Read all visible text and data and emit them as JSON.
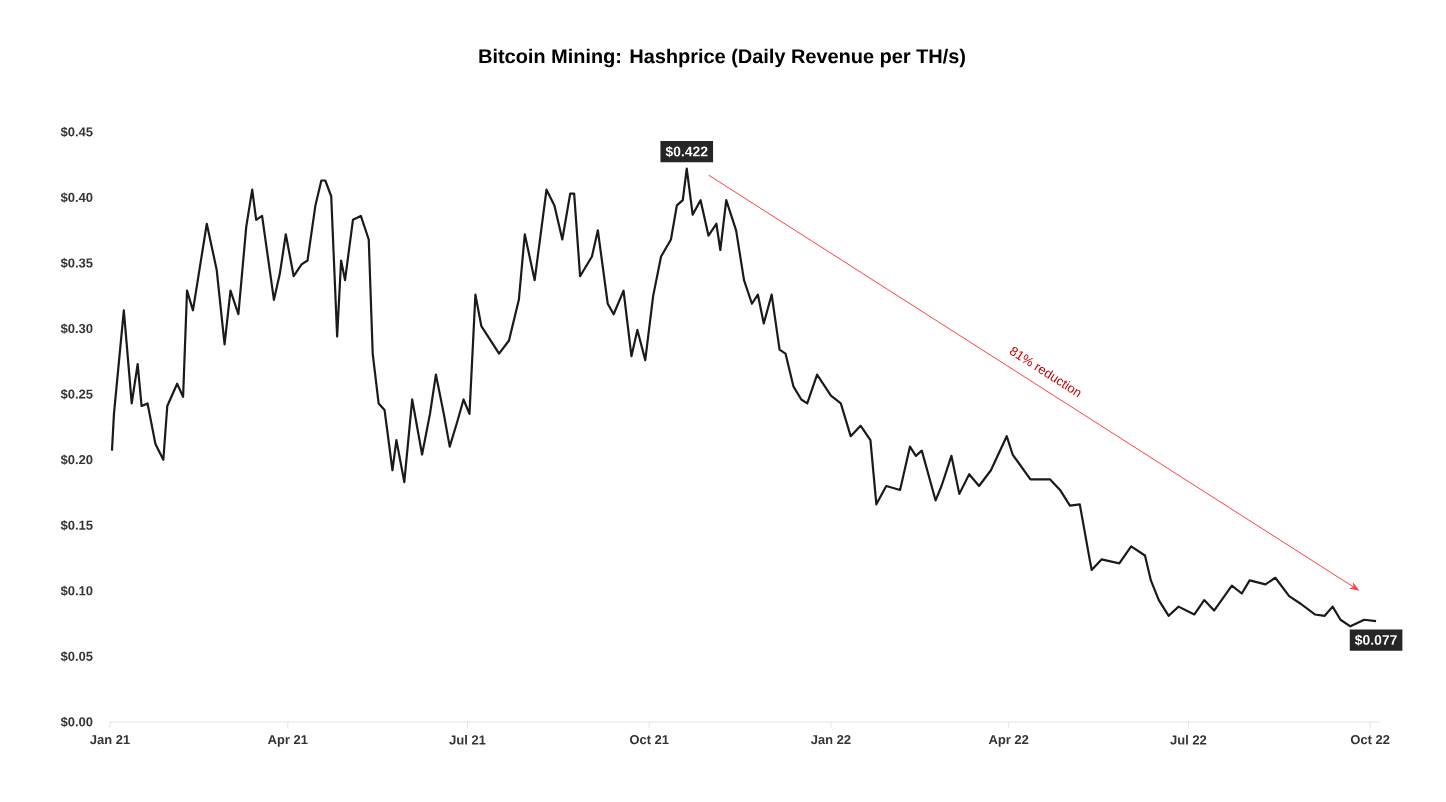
{
  "chart_data": {
    "type": "line",
    "title": "Bitcoin Mining: Hashprice (Daily Revenue per TH/s)",
    "x": [
      "2021-01-02",
      "2021-01-03",
      "2021-01-08",
      "2021-01-12",
      "2021-01-15",
      "2021-01-17",
      "2021-01-20",
      "2021-01-24",
      "2021-01-28",
      "2021-01-30",
      "2021-02-04",
      "2021-02-07",
      "2021-02-09",
      "2021-02-12",
      "2021-02-19",
      "2021-02-24",
      "2021-02-28",
      "2021-03-03",
      "2021-03-07",
      "2021-03-11",
      "2021-03-14",
      "2021-03-16",
      "2021-03-19",
      "2021-03-25",
      "2021-03-28",
      "2021-03-31",
      "2021-04-04",
      "2021-04-08",
      "2021-04-11",
      "2021-04-15",
      "2021-04-18",
      "2021-04-20",
      "2021-04-23",
      "2021-04-26",
      "2021-04-28",
      "2021-04-30",
      "2021-05-04",
      "2021-05-08",
      "2021-05-12",
      "2021-05-14",
      "2021-05-17",
      "2021-05-20",
      "2021-05-24",
      "2021-05-26",
      "2021-05-30",
      "2021-06-03",
      "2021-06-08",
      "2021-06-12",
      "2021-06-15",
      "2021-06-19",
      "2021-06-22",
      "2021-06-26",
      "2021-06-29",
      "2021-07-02",
      "2021-07-05",
      "2021-07-08",
      "2021-07-17",
      "2021-07-22",
      "2021-07-27",
      "2021-07-30",
      "2021-08-04",
      "2021-08-10",
      "2021-08-14",
      "2021-08-18",
      "2021-08-22",
      "2021-08-24",
      "2021-08-27",
      "2021-09-02",
      "2021-09-05",
      "2021-09-10",
      "2021-09-13",
      "2021-09-18",
      "2021-09-22",
      "2021-09-25",
      "2021-09-29",
      "2021-10-03",
      "2021-10-07",
      "2021-10-12",
      "2021-10-15",
      "2021-10-18",
      "2021-10-20",
      "2021-10-23",
      "2021-10-27",
      "2021-10-31",
      "2021-11-04",
      "2021-11-06",
      "2021-11-09",
      "2021-11-14",
      "2021-11-18",
      "2021-11-22",
      "2021-11-25",
      "2021-11-28",
      "2021-12-02",
      "2021-12-06",
      "2021-12-09",
      "2021-12-13",
      "2021-12-17",
      "2021-12-20",
      "2021-12-25",
      "2022-01-01",
      "2022-01-06",
      "2022-01-11",
      "2022-01-16",
      "2022-01-21",
      "2022-01-24",
      "2022-01-29",
      "2022-02-05",
      "2022-02-10",
      "2022-02-13",
      "2022-02-16",
      "2022-02-23",
      "2022-02-26",
      "2022-03-03",
      "2022-03-07",
      "2022-03-12",
      "2022-03-17",
      "2022-03-23",
      "2022-03-31",
      "2022-04-03",
      "2022-04-12",
      "2022-04-22",
      "2022-04-27",
      "2022-05-02",
      "2022-05-07",
      "2022-05-12",
      "2022-05-13",
      "2022-05-18",
      "2022-05-27",
      "2022-06-02",
      "2022-06-09",
      "2022-06-12",
      "2022-06-16",
      "2022-06-21",
      "2022-06-26",
      "2022-07-04",
      "2022-07-09",
      "2022-07-14",
      "2022-07-23",
      "2022-07-28",
      "2022-08-01",
      "2022-08-09",
      "2022-08-14",
      "2022-08-21",
      "2022-08-27",
      "2022-09-03",
      "2022-09-08",
      "2022-09-12",
      "2022-09-16",
      "2022-09-21",
      "2022-09-28",
      "2022-10-04"
    ],
    "series": [
      {
        "color": "#1a1a1a",
        "values": [
          0.207,
          0.235,
          0.314,
          0.243,
          0.273,
          0.241,
          0.243,
          0.212,
          0.2,
          0.241,
          0.258,
          0.248,
          0.329,
          0.314,
          0.38,
          0.345,
          0.288,
          0.329,
          0.311,
          0.378,
          0.406,
          0.383,
          0.386,
          0.322,
          0.342,
          0.372,
          0.34,
          0.349,
          0.352,
          0.394,
          0.413,
          0.413,
          0.401,
          0.294,
          0.352,
          0.337,
          0.383,
          0.386,
          0.368,
          0.281,
          0.243,
          0.238,
          0.192,
          0.215,
          0.183,
          0.246,
          0.204,
          0.235,
          0.265,
          0.235,
          0.21,
          0.23,
          0.246,
          0.235,
          0.326,
          0.302,
          0.281,
          0.291,
          0.322,
          0.372,
          0.337,
          0.406,
          0.394,
          0.368,
          0.403,
          0.403,
          0.34,
          0.355,
          0.375,
          0.319,
          0.311,
          0.329,
          0.279,
          0.299,
          0.276,
          0.325,
          0.355,
          0.368,
          0.394,
          0.398,
          0.422,
          0.387,
          0.398,
          0.371,
          0.38,
          0.36,
          0.398,
          0.375,
          0.337,
          0.319,
          0.326,
          0.304,
          0.326,
          0.284,
          0.281,
          0.256,
          0.246,
          0.243,
          0.265,
          0.249,
          0.243,
          0.218,
          0.226,
          0.215,
          0.166,
          0.18,
          0.177,
          0.21,
          0.203,
          0.207,
          0.169,
          0.18,
          0.203,
          0.174,
          0.189,
          0.18,
          0.192,
          0.218,
          0.204,
          0.185,
          0.185,
          0.177,
          0.165,
          0.166,
          0.124,
          0.116,
          0.124,
          0.121,
          0.134,
          0.127,
          0.108,
          0.093,
          0.081,
          0.088,
          0.082,
          0.093,
          0.085,
          0.104,
          0.098,
          0.108,
          0.105,
          0.11,
          0.096,
          0.09,
          0.082,
          0.081,
          0.088,
          0.078,
          0.073,
          0.078,
          0.077
        ]
      }
    ],
    "xlim": [
      "2021-01-01",
      "2022-10-06"
    ],
    "xticks": [
      {
        "value": "2021-01-01",
        "label": "Jan 21"
      },
      {
        "value": "2021-04-01",
        "label": "Apr 21"
      },
      {
        "value": "2021-07-01",
        "label": "Jul 21"
      },
      {
        "value": "2021-10-01",
        "label": "Oct 21"
      },
      {
        "value": "2022-01-01",
        "label": "Jan 22"
      },
      {
        "value": "2022-04-01",
        "label": "Apr 22"
      },
      {
        "value": "2022-07-01",
        "label": "Jul 22"
      },
      {
        "value": "2022-10-01",
        "label": "Oct 22"
      }
    ],
    "ylim": [
      0,
      0.45
    ],
    "yticks": [
      {
        "value": 0,
        "label": "$0.00"
      },
      {
        "value": 0.05,
        "label": "$0.05"
      },
      {
        "value": 0.1,
        "label": "$0.10"
      },
      {
        "value": 0.15,
        "label": "$0.15"
      },
      {
        "value": 0.2,
        "label": "$0.20"
      },
      {
        "value": 0.25,
        "label": "$0.25"
      },
      {
        "value": 0.3,
        "label": "$0.30"
      },
      {
        "value": 0.35,
        "label": "$0.35"
      },
      {
        "value": 0.4,
        "label": "$0.40"
      },
      {
        "value": 0.45,
        "label": "$0.45"
      }
    ],
    "annotations": [
      {
        "text": "$0.422",
        "x": "2021-10-20",
        "y": 0.422
      },
      {
        "text": "$0.077",
        "x": "2022-10-04",
        "y": 0.077
      },
      "81% reduction"
    ]
  }
}
